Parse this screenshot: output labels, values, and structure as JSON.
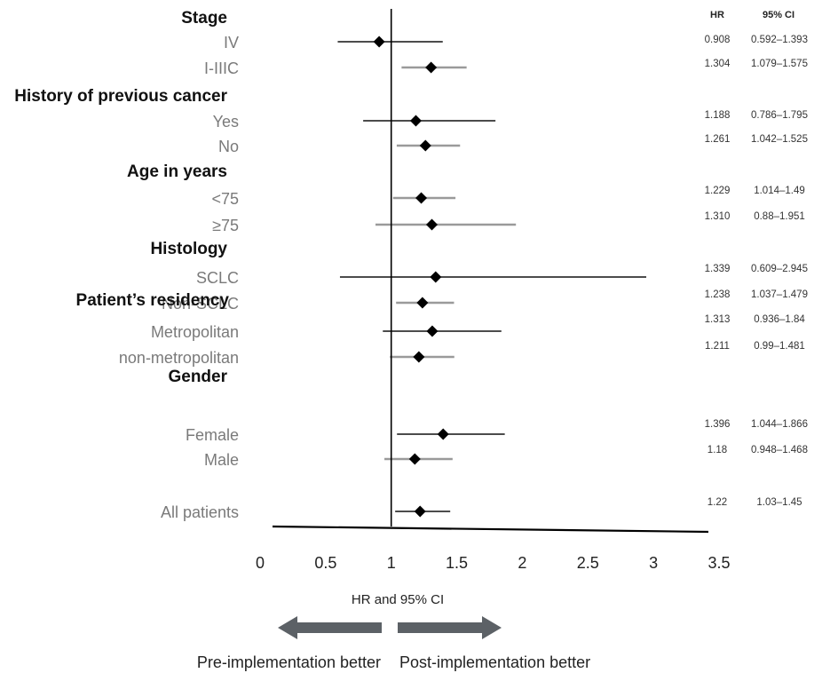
{
  "chart_data": {
    "type": "forest",
    "groups": [
      {
        "label": "Stage",
        "rows": [
          {
            "label": "IV",
            "hr": 0.908,
            "lo": 0.592,
            "hi": 1.393,
            "hr_text": "0.908",
            "ci_text": "0.592–1.393"
          },
          {
            "label": "I-IIIC",
            "hr": 1.304,
            "lo": 1.079,
            "hi": 1.575,
            "hr_text": "1.304",
            "ci_text": "1.079–1.575"
          }
        ]
      },
      {
        "label": "History of previous cancer",
        "rows": [
          {
            "label": "Yes",
            "hr": 1.188,
            "lo": 0.786,
            "hi": 1.795,
            "hr_text": "1.188",
            "ci_text": "0.786–1.795"
          },
          {
            "label": "No",
            "hr": 1.261,
            "lo": 1.042,
            "hi": 1.525,
            "hr_text": "1.261",
            "ci_text": "1.042–1.525"
          }
        ]
      },
      {
        "label": "Age in years",
        "rows": [
          {
            "label": "<75",
            "hr": 1.229,
            "lo": 1.014,
            "hi": 1.49,
            "hr_text": "1.229",
            "ci_text": "1.014–1.49"
          },
          {
            "label": "≥75",
            "hr": 1.31,
            "lo": 0.88,
            "hi": 1.951,
            "hr_text": "1.310",
            "ci_text": "0.88–1.951"
          }
        ]
      },
      {
        "label": "Histology",
        "rows": [
          {
            "label": "SCLC",
            "hr": 1.339,
            "lo": 0.609,
            "hi": 2.945,
            "hr_text": "1.339",
            "ci_text": "0.609–2.945"
          },
          {
            "label": "Non-SCLC",
            "hr": 1.238,
            "lo": 1.037,
            "hi": 1.479,
            "hr_text": "1.238",
            "ci_text": "1.037–1.479"
          }
        ]
      },
      {
        "label": "Patient’s residency",
        "rows": [
          {
            "label": "Metropolitan",
            "hr": 1.313,
            "lo": 0.936,
            "hi": 1.84,
            "hr_text": "1.313",
            "ci_text": "0.936–1.84"
          },
          {
            "label": "non-metropolitan",
            "hr": 1.211,
            "lo": 0.99,
            "hi": 1.481,
            "hr_text": "1.211",
            "ci_text": "0.99–1.481"
          }
        ]
      },
      {
        "label": "Gender",
        "rows": [
          {
            "label": "Female",
            "hr": 1.396,
            "lo": 1.044,
            "hi": 1.866,
            "hr_text": "1.396",
            "ci_text": "1.044–1.866"
          },
          {
            "label": "Male",
            "hr": 1.18,
            "lo": 0.948,
            "hi": 1.468,
            "hr_text": "1.18",
            "ci_text": "0.948–1.468"
          }
        ]
      },
      {
        "label": "",
        "rows": [
          {
            "label": "All patients",
            "hr": 1.22,
            "lo": 1.03,
            "hi": 1.45,
            "hr_text": "1.22",
            "ci_text": "1.03–1.45"
          }
        ]
      }
    ],
    "xlim": [
      0,
      3.5
    ],
    "xticks": [
      "0",
      "0.5",
      "1",
      "1.5",
      "2",
      "2.5",
      "3",
      "3.5"
    ],
    "reference_line": 1,
    "xlabel": "HR and 95% CI",
    "col_headers": {
      "hr": "HR",
      "ci": "95% CI"
    },
    "direction_labels": {
      "left": "Pre-implementation better",
      "right": "Post-implementation better"
    },
    "colors": {
      "ci_dark": "#111111",
      "ci_light": "#9a9a9a",
      "marker": "#000000",
      "arrow": "#5c6166",
      "row_label": "#7a7a7a"
    }
  }
}
